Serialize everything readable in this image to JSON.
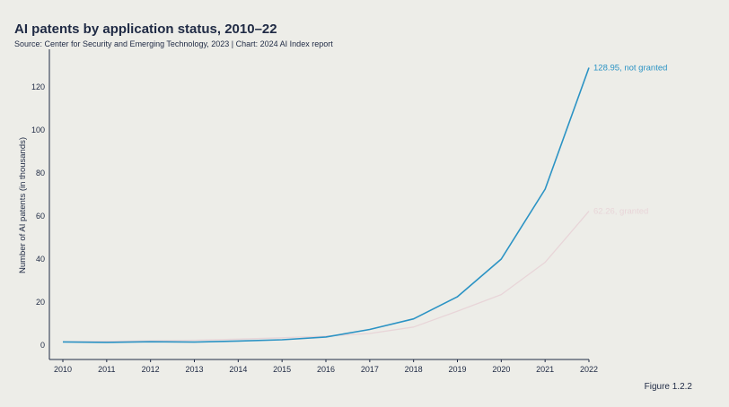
{
  "header": {
    "title": "AI patents by application status, 2010–22",
    "subtitle": "Source: Center for Security and Emerging Technology, 2023 | Chart: 2024 AI Index report"
  },
  "footer": {
    "figure_label": "Figure 1.2.2"
  },
  "colors": {
    "background": "#edede8",
    "not_granted": "#2b93c4",
    "granted": "#e8d5d8",
    "axis": "#1f2a44"
  },
  "chart_data": {
    "type": "line",
    "title": "AI patents by application status, 2010–22",
    "xlabel": "",
    "ylabel": "Number of AI patents (in thousands)",
    "x": [
      "2010",
      "2011",
      "2012",
      "2013",
      "2014",
      "2015",
      "2016",
      "2017",
      "2018",
      "2019",
      "2020",
      "2021",
      "2022"
    ],
    "ylim": [
      -7,
      135
    ],
    "yticks": [
      0,
      20,
      40,
      60,
      80,
      100,
      120
    ],
    "grid": false,
    "series": [
      {
        "name": "not granted",
        "color": "#2b93c4",
        "values": [
          1.5,
          1.3,
          1.6,
          1.4,
          1.9,
          2.5,
          3.8,
          7.3,
          12.2,
          22.5,
          40.0,
          72.5,
          128.95
        ],
        "end_label": "128.95, not granted"
      },
      {
        "name": "granted",
        "color": "#e8d5d8",
        "values": [
          1.6,
          1.8,
          2.0,
          2.3,
          2.8,
          3.4,
          4.2,
          5.4,
          8.4,
          15.8,
          23.5,
          38.5,
          62.26
        ],
        "end_label": "62.26, granted"
      }
    ]
  }
}
